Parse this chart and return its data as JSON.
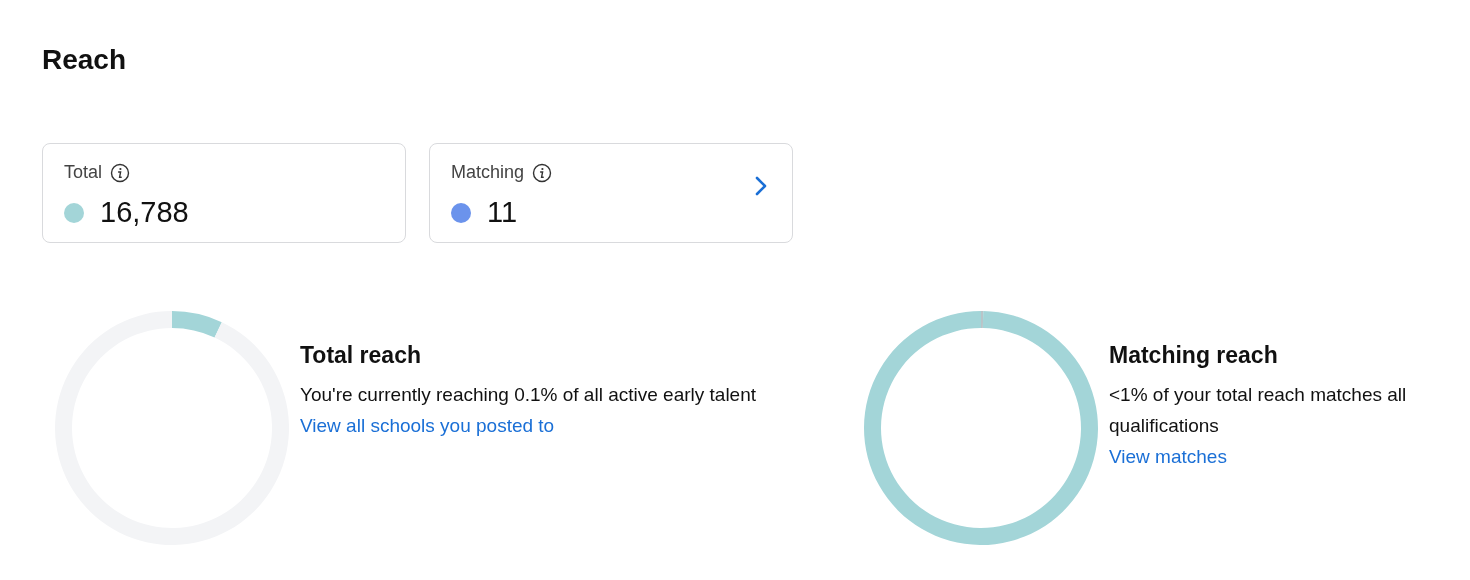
{
  "chart_data": [
    {
      "type": "other",
      "title": "Reach",
      "categories": [
        "Total",
        "Matching"
      ],
      "values": [
        16788,
        11
      ],
      "value_labels": [
        "16,788",
        "11"
      ],
      "colors": [
        "#a3d5d8",
        "#6b93ec"
      ]
    },
    {
      "type": "donut",
      "title": "Total reach",
      "categories": [
        null,
        null
      ],
      "values": [
        7,
        93
      ],
      "colors": [
        "#a3d5d8",
        "#f3f4f6"
      ],
      "annotations": [
        "You're currently reaching 0.1% of all active early talent",
        "View all schools you posted to"
      ]
    },
    {
      "type": "donut",
      "title": "Matching reach",
      "categories": [
        null,
        null
      ],
      "values": [
        0.3,
        99.7
      ],
      "colors": [
        "#b9c4c8",
        "#a3d5d8"
      ],
      "annotations": [
        "<1% of your total reach matches all qualifications",
        "View matches"
      ]
    }
  ]
}
